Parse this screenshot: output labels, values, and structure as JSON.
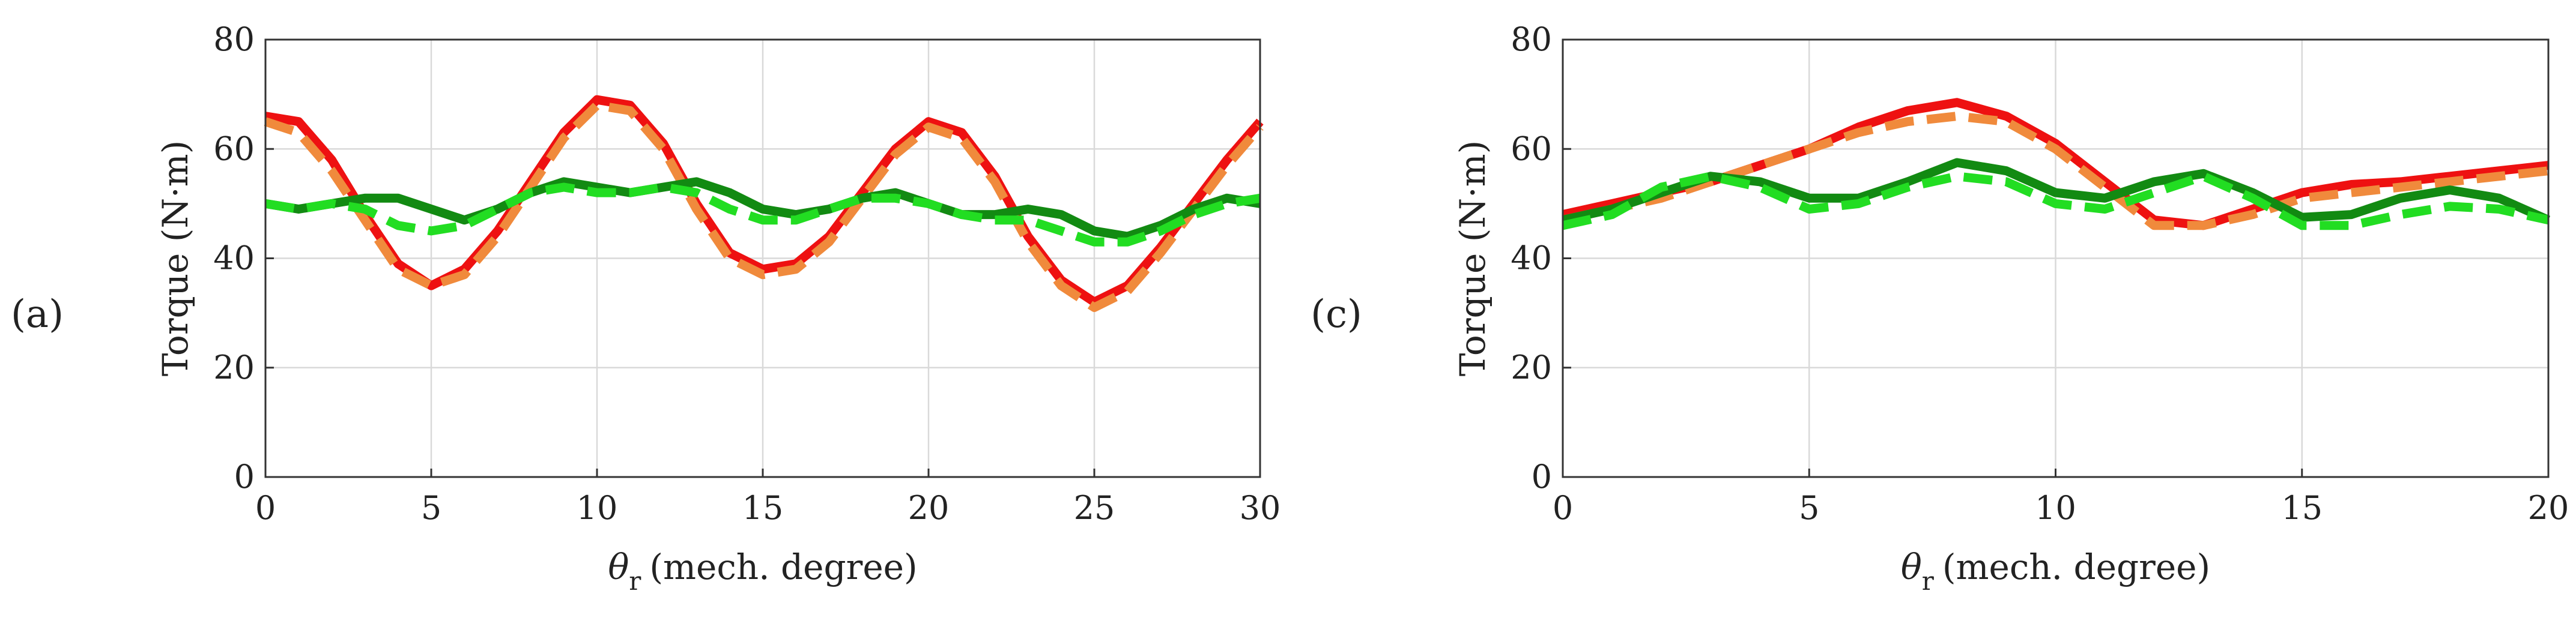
{
  "chart_data": [
    {
      "type": "line",
      "panel_label": "(a)",
      "xlabel": "(mech. degree)",
      "xlabel_symbol": "θ",
      "xlabel_subscript": "r",
      "ylabel": "Torque (N·m)",
      "xlim": [
        0,
        30
      ],
      "ylim": [
        0,
        80
      ],
      "xticks": [
        0,
        5,
        10,
        15,
        20,
        25,
        30
      ],
      "yticks": [
        0,
        20,
        40,
        60,
        80
      ],
      "grid": true,
      "series": [
        {
          "color": "#ee1111",
          "style": "solid",
          "x": [
            0,
            1,
            2,
            3,
            4,
            5,
            6,
            7,
            8,
            9,
            10,
            11,
            12,
            13,
            14,
            15,
            16,
            17,
            18,
            19,
            20,
            21,
            22,
            23,
            24,
            25,
            26,
            27,
            28,
            29,
            30
          ],
          "y": [
            66,
            65,
            58,
            48,
            39,
            35,
            38,
            45,
            54,
            63,
            69,
            68,
            61,
            50,
            41,
            38,
            39,
            44,
            52,
            60,
            65,
            63,
            55,
            44,
            36,
            32,
            35,
            42,
            50,
            58,
            65
          ]
        },
        {
          "color": "#f08a3c",
          "style": "dashed",
          "x": [
            0,
            1,
            2,
            3,
            4,
            5,
            6,
            7,
            8,
            9,
            10,
            11,
            12,
            13,
            14,
            15,
            16,
            17,
            18,
            19,
            20,
            21,
            22,
            23,
            24,
            25,
            26,
            27,
            28,
            29,
            30
          ],
          "y": [
            65,
            63,
            56,
            47,
            38,
            35,
            37,
            44,
            53,
            62,
            68,
            67,
            60,
            49,
            40,
            37,
            38,
            43,
            51,
            59,
            64,
            62,
            54,
            43,
            35,
            31,
            34,
            41,
            49,
            57,
            64
          ]
        },
        {
          "color": "#128a12",
          "style": "solid",
          "x": [
            0,
            1,
            2,
            3,
            4,
            5,
            6,
            7,
            8,
            9,
            10,
            11,
            12,
            13,
            14,
            15,
            16,
            17,
            18,
            19,
            20,
            21,
            22,
            23,
            24,
            25,
            26,
            27,
            28,
            29,
            30
          ],
          "y": [
            50,
            49,
            50,
            51,
            51,
            49,
            47,
            49,
            52,
            54,
            53,
            52,
            53,
            54,
            52,
            49,
            48,
            49,
            51,
            52,
            50,
            48,
            48,
            49,
            48,
            45,
            44,
            46,
            49,
            51,
            50
          ]
        },
        {
          "color": "#22dd22",
          "style": "dashed",
          "x": [
            0,
            1,
            2,
            3,
            4,
            5,
            6,
            7,
            8,
            9,
            10,
            11,
            12,
            13,
            14,
            15,
            16,
            17,
            18,
            19,
            20,
            21,
            22,
            23,
            24,
            25,
            26,
            27,
            28,
            29,
            30
          ],
          "y": [
            50,
            49,
            50,
            49,
            46,
            45,
            46,
            49,
            52,
            53,
            52,
            52,
            53,
            52,
            49,
            47,
            47,
            49,
            51,
            51,
            50,
            48,
            47,
            47,
            45,
            43,
            43,
            45,
            48,
            50,
            51
          ]
        }
      ]
    },
    {
      "type": "line",
      "panel_label": "(c)",
      "xlabel": "(mech. degree)",
      "xlabel_symbol": "θ",
      "xlabel_subscript": "r",
      "ylabel": "Torque (N·m)",
      "xlim": [
        0,
        20
      ],
      "ylim": [
        0,
        80
      ],
      "xticks": [
        0,
        5,
        10,
        15,
        20
      ],
      "yticks": [
        0,
        20,
        40,
        60,
        80
      ],
      "grid": true,
      "series": [
        {
          "color": "#ee1111",
          "style": "solid",
          "x": [
            0,
            1,
            2,
            3,
            4,
            5,
            6,
            7,
            8,
            9,
            10,
            11,
            12,
            13,
            14,
            15,
            16,
            17,
            18,
            19,
            20
          ],
          "y": [
            48,
            50,
            52,
            54,
            57,
            60,
            64,
            67,
            68.5,
            66,
            61,
            54,
            47,
            46,
            49,
            52,
            53.5,
            54,
            55,
            56,
            57
          ]
        },
        {
          "color": "#f08a3c",
          "style": "dashed",
          "x": [
            0,
            1,
            2,
            3,
            4,
            5,
            6,
            7,
            8,
            9,
            10,
            11,
            12,
            13,
            14,
            15,
            16,
            17,
            18,
            19,
            20
          ],
          "y": [
            47,
            49,
            51,
            54,
            57,
            60,
            63,
            65,
            66,
            65,
            60,
            53,
            46,
            46,
            48,
            51,
            52,
            53,
            54,
            55,
            56
          ]
        },
        {
          "color": "#128a12",
          "style": "solid",
          "x": [
            0,
            1,
            2,
            3,
            4,
            5,
            6,
            7,
            8,
            9,
            10,
            11,
            12,
            13,
            14,
            15,
            16,
            17,
            18,
            19,
            20
          ],
          "y": [
            47,
            49,
            52,
            55,
            54,
            51,
            51,
            54,
            57.5,
            56,
            52,
            51,
            54,
            55.5,
            52,
            47.5,
            48,
            51,
            52.5,
            51,
            47
          ]
        },
        {
          "color": "#22dd22",
          "style": "dashed",
          "x": [
            0,
            1,
            2,
            3,
            4,
            5,
            6,
            7,
            8,
            9,
            10,
            11,
            12,
            13,
            14,
            15,
            16,
            17,
            18,
            19,
            20
          ],
          "y": [
            46,
            48,
            53,
            55,
            53,
            49,
            50,
            53,
            55,
            54,
            50,
            49,
            52,
            55,
            51,
            46,
            46,
            48,
            49.5,
            49,
            47
          ]
        }
      ]
    }
  ]
}
